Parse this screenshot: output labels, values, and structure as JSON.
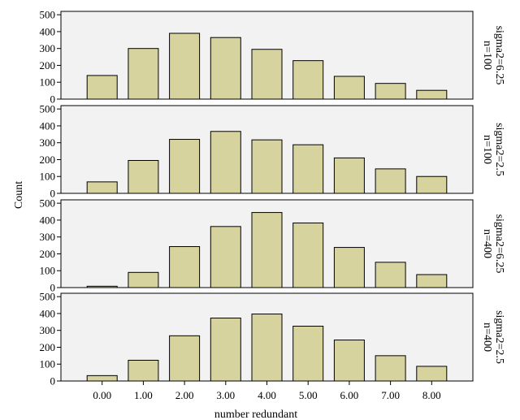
{
  "chart_data": {
    "type": "bar",
    "layout": "faceted-vertical",
    "xlabel": "number redundant",
    "ylabel": "Count",
    "categories": [
      "0.00",
      "1.00",
      "2.00",
      "3.00",
      "4.00",
      "5.00",
      "6.00",
      "7.00",
      "8.00"
    ],
    "ylim": [
      0,
      520
    ],
    "yticks": [
      0,
      100,
      200,
      300,
      400,
      500
    ],
    "grid": false,
    "bar_color": "#d6d39f",
    "bar_edge_color": "#000000",
    "plot_background": "#f2f2f2",
    "panels": [
      {
        "label_line1": "n=100",
        "label_line2": "sigma2=6.25",
        "values": [
          140,
          300,
          390,
          365,
          295,
          228,
          135,
          93,
          52
        ]
      },
      {
        "label_line1": "n=100",
        "label_line2": "sigma2=2.5",
        "values": [
          68,
          195,
          320,
          367,
          317,
          288,
          210,
          145,
          100
        ]
      },
      {
        "label_line1": "n=400",
        "label_line2": "sigma2=6.25",
        "values": [
          8,
          90,
          243,
          362,
          445,
          383,
          238,
          150,
          77
        ]
      },
      {
        "label_line1": "n=400",
        "label_line2": "sigma2=2.5",
        "values": [
          32,
          123,
          268,
          373,
          397,
          325,
          243,
          150,
          87
        ]
      }
    ]
  }
}
